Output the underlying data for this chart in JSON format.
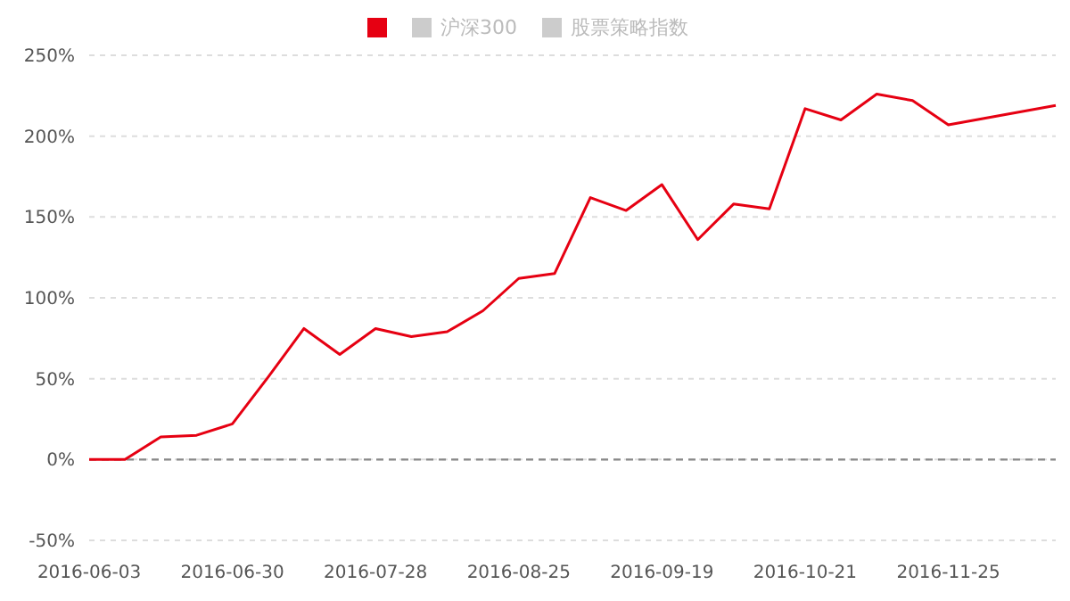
{
  "chart_data": {
    "type": "line",
    "categories": [
      "2016-06-03",
      null,
      null,
      null,
      "2016-06-30",
      null,
      null,
      null,
      "2016-07-28",
      null,
      null,
      null,
      "2016-08-25",
      null,
      null,
      null,
      "2016-09-19",
      null,
      null,
      null,
      "2016-10-21",
      null,
      null,
      null,
      "2016-11-25",
      null,
      null,
      null
    ],
    "series": [
      {
        "color": "#e60012",
        "values": [
          0,
          0,
          14,
          15,
          22,
          51,
          81,
          65,
          81,
          76,
          79,
          92,
          112,
          115,
          162,
          154,
          170,
          136,
          158,
          155,
          217,
          210,
          226,
          222,
          207,
          211,
          215,
          219
        ]
      },
      {
        "name": "沪深300",
        "color": "#cccccc",
        "values": [
          null,
          null,
          null,
          null,
          null,
          null,
          null,
          null,
          null,
          null,
          null,
          null,
          null,
          null,
          null,
          null,
          null,
          null,
          null,
          null,
          null,
          null,
          null,
          null,
          null,
          null,
          null,
          null
        ]
      },
      {
        "name": "股票策略指数",
        "color": "#cccccc",
        "values": [
          null,
          null,
          null,
          null,
          null,
          null,
          null,
          null,
          null,
          null,
          null,
          null,
          null,
          null,
          null,
          null,
          null,
          null,
          null,
          null,
          null,
          null,
          null,
          null,
          null,
          null,
          null,
          null
        ]
      }
    ],
    "ylim": [
      -50,
      250
    ],
    "yticks": [
      {
        "value": -50,
        "label": "-50%"
      },
      {
        "value": 0,
        "label": "0%"
      },
      {
        "value": 50,
        "label": "50%"
      },
      {
        "value": 100,
        "label": "100%"
      },
      {
        "value": 150,
        "label": "150%"
      },
      {
        "value": 200,
        "label": "200%"
      },
      {
        "value": 250,
        "label": "250%"
      }
    ],
    "ref_lines": [
      {
        "axis": "y",
        "value": 0,
        "color": "#888888",
        "line_style": "dashed"
      }
    ],
    "grid": "y",
    "legend": "top",
    "marker": "none",
    "line_style": "solid"
  }
}
